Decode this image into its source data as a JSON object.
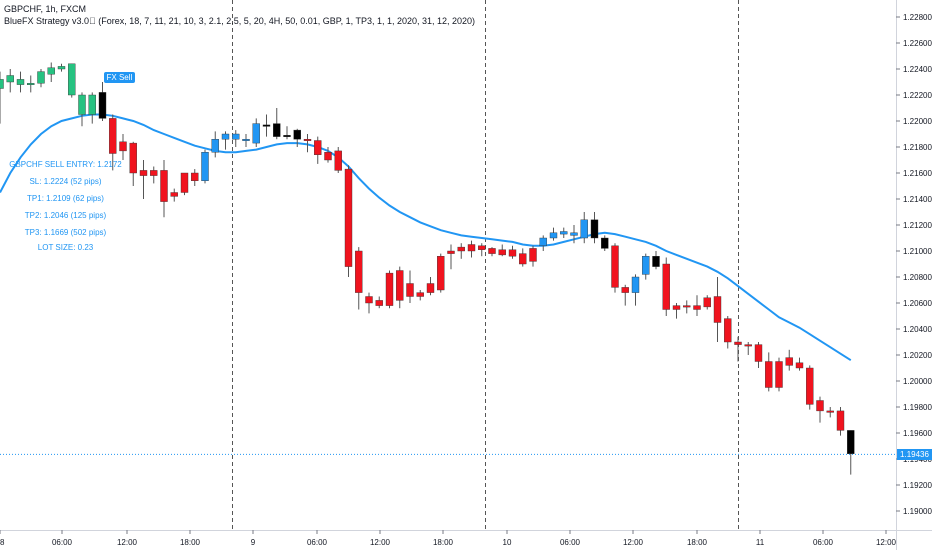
{
  "header": {
    "symbol_line": "GBPCHF, 1h, FXCM",
    "indicator_line": "BlueFX Strategy v3.0⃝ (Forex, 18, 7, 11, 21, 10, 3, 2.1, 2.5, 5, 20, 4H, 50, 0.01, GBP, 1, TP3, 1, 1, 2020, 31, 12, 2020)"
  },
  "signal": {
    "label": "FX Sell",
    "entry": "GBPCHF SELL ENTRY: 1.2172",
    "sl": "SL: 1.2224 (52 pips)",
    "tp1": "TP1: 1.2109 (62 pips)",
    "tp2": "TP2: 1.2046 (125 pips)",
    "tp3": "TP3: 1.1669 (502 pips)",
    "lot": "LOT SIZE: 0.23"
  },
  "current_price_label": "1.19436",
  "colors": {
    "bull_green": "#26c281",
    "bear_red": "#f0131e",
    "neutral_blue": "#2196f3",
    "neutral_black": "#000000",
    "ma_line": "#2196f3",
    "session_line": "#555555"
  },
  "chart_data": {
    "type": "candlestick",
    "symbol": "GBPCHF",
    "timeframe": "1h",
    "ylim": [
      1.189,
      1.229
    ],
    "y_ticks": [
      "1.22800",
      "1.22600",
      "1.22400",
      "1.22200",
      "1.22000",
      "1.21800",
      "1.21600",
      "1.21400",
      "1.21200",
      "1.21000",
      "1.20800",
      "1.20600",
      "1.20400",
      "1.20200",
      "1.20000",
      "1.19800",
      "1.19600",
      "1.19400",
      "1.19200",
      "1.19000"
    ],
    "x_ticks": [
      "8",
      "06:00",
      "12:00",
      "18:00",
      "9",
      "06:00",
      "12:00",
      "18:00",
      "10",
      "06:00",
      "12:00",
      "18:00",
      "11",
      "06:00",
      "12:00"
    ],
    "current_price": 1.19436,
    "candles": [
      {
        "o": 1.2225,
        "h": 1.2238,
        "l": 1.2198,
        "c": 1.2232,
        "col": "g"
      },
      {
        "o": 1.223,
        "h": 1.224,
        "l": 1.2222,
        "c": 1.2235,
        "col": "g"
      },
      {
        "o": 1.2228,
        "h": 1.2238,
        "l": 1.2222,
        "c": 1.2232,
        "col": "g"
      },
      {
        "o": 1.2228,
        "h": 1.2235,
        "l": 1.2222,
        "c": 1.2229,
        "col": "g"
      },
      {
        "o": 1.2229,
        "h": 1.224,
        "l": 1.2226,
        "c": 1.2238,
        "col": "g"
      },
      {
        "o": 1.2236,
        "h": 1.2245,
        "l": 1.223,
        "c": 1.2241,
        "col": "g"
      },
      {
        "o": 1.2242,
        "h": 1.2244,
        "l": 1.2238,
        "c": 1.224,
        "col": "g"
      },
      {
        "o": 1.222,
        "h": 1.2244,
        "l": 1.2218,
        "c": 1.2244,
        "col": "g"
      },
      {
        "o": 1.2205,
        "h": 1.2222,
        "l": 1.2196,
        "c": 1.222,
        "col": "g"
      },
      {
        "o": 1.2205,
        "h": 1.2222,
        "l": 1.2198,
        "c": 1.222,
        "col": "g"
      },
      {
        "o": 1.2222,
        "h": 1.223,
        "l": 1.22,
        "c": 1.2202,
        "col": "k"
      },
      {
        "o": 1.2202,
        "h": 1.2205,
        "l": 1.2162,
        "c": 1.2175,
        "col": "r"
      },
      {
        "o": 1.2184,
        "h": 1.219,
        "l": 1.217,
        "c": 1.2177,
        "col": "r"
      },
      {
        "o": 1.2183,
        "h": 1.2184,
        "l": 1.215,
        "c": 1.216,
        "col": "r"
      },
      {
        "o": 1.2162,
        "h": 1.217,
        "l": 1.214,
        "c": 1.2158,
        "col": "r"
      },
      {
        "o": 1.2162,
        "h": 1.2165,
        "l": 1.2152,
        "c": 1.2158,
        "col": "r"
      },
      {
        "o": 1.2162,
        "h": 1.217,
        "l": 1.2126,
        "c": 1.2138,
        "col": "r"
      },
      {
        "o": 1.2145,
        "h": 1.2148,
        "l": 1.2138,
        "c": 1.2142,
        "col": "r"
      },
      {
        "o": 1.2145,
        "h": 1.216,
        "l": 1.2143,
        "c": 1.216,
        "col": "r"
      },
      {
        "o": 1.2154,
        "h": 1.2163,
        "l": 1.215,
        "c": 1.216,
        "col": "r"
      },
      {
        "o": 1.2154,
        "h": 1.2178,
        "l": 1.2152,
        "c": 1.2176,
        "col": "b"
      },
      {
        "o": 1.2176,
        "h": 1.2192,
        "l": 1.2172,
        "c": 1.2186,
        "col": "b"
      },
      {
        "o": 1.2186,
        "h": 1.2192,
        "l": 1.2178,
        "c": 1.219,
        "col": "b"
      },
      {
        "o": 1.2186,
        "h": 1.2193,
        "l": 1.218,
        "c": 1.219,
        "col": "b"
      },
      {
        "o": 1.2186,
        "h": 1.219,
        "l": 1.218,
        "c": 1.2185,
        "col": "b"
      },
      {
        "o": 1.2183,
        "h": 1.2202,
        "l": 1.218,
        "c": 1.2198,
        "col": "b"
      },
      {
        "o": 1.2197,
        "h": 1.2205,
        "l": 1.2188,
        "c": 1.2197,
        "col": "k"
      },
      {
        "o": 1.2198,
        "h": 1.221,
        "l": 1.2186,
        "c": 1.2188,
        "col": "k"
      },
      {
        "o": 1.2189,
        "h": 1.2196,
        "l": 1.2186,
        "c": 1.2188,
        "col": "k"
      },
      {
        "o": 1.2193,
        "h": 1.2194,
        "l": 1.218,
        "c": 1.2186,
        "col": "k"
      },
      {
        "o": 1.2186,
        "h": 1.219,
        "l": 1.2176,
        "c": 1.2185,
        "col": "r"
      },
      {
        "o": 1.2185,
        "h": 1.2188,
        "l": 1.2167,
        "c": 1.2174,
        "col": "r"
      },
      {
        "o": 1.2176,
        "h": 1.218,
        "l": 1.2168,
        "c": 1.217,
        "col": "r"
      },
      {
        "o": 1.2177,
        "h": 1.218,
        "l": 1.216,
        "c": 1.2162,
        "col": "r"
      },
      {
        "o": 1.2163,
        "h": 1.2166,
        "l": 1.208,
        "c": 1.2088,
        "col": "r"
      },
      {
        "o": 1.21,
        "h": 1.2103,
        "l": 1.2055,
        "c": 1.2068,
        "col": "r"
      },
      {
        "o": 1.2065,
        "h": 1.2068,
        "l": 1.2052,
        "c": 1.206,
        "col": "r"
      },
      {
        "o": 1.2062,
        "h": 1.2065,
        "l": 1.2056,
        "c": 1.2058,
        "col": "r"
      },
      {
        "o": 1.2058,
        "h": 1.2085,
        "l": 1.2056,
        "c": 1.2083,
        "col": "r"
      },
      {
        "o": 1.2085,
        "h": 1.2088,
        "l": 1.2056,
        "c": 1.2062,
        "col": "r"
      },
      {
        "o": 1.2065,
        "h": 1.2085,
        "l": 1.206,
        "c": 1.2075,
        "col": "r"
      },
      {
        "o": 1.2065,
        "h": 1.207,
        "l": 1.2062,
        "c": 1.2068,
        "col": "r"
      },
      {
        "o": 1.2068,
        "h": 1.208,
        "l": 1.2066,
        "c": 1.2075,
        "col": "r"
      },
      {
        "o": 1.207,
        "h": 1.2098,
        "l": 1.2068,
        "c": 1.2096,
        "col": "r"
      },
      {
        "o": 1.2098,
        "h": 1.2105,
        "l": 1.2086,
        "c": 1.21,
        "col": "r"
      },
      {
        "o": 1.21,
        "h": 1.2106,
        "l": 1.2094,
        "c": 1.2103,
        "col": "r"
      },
      {
        "o": 1.21,
        "h": 1.2108,
        "l": 1.2095,
        "c": 1.2105,
        "col": "r"
      },
      {
        "o": 1.2101,
        "h": 1.2106,
        "l": 1.2096,
        "c": 1.2104,
        "col": "r"
      },
      {
        "o": 1.2102,
        "h": 1.2103,
        "l": 1.2096,
        "c": 1.2098,
        "col": "r"
      },
      {
        "o": 1.2101,
        "h": 1.2105,
        "l": 1.2096,
        "c": 1.2097,
        "col": "r"
      },
      {
        "o": 1.2101,
        "h": 1.2104,
        "l": 1.2094,
        "c": 1.2096,
        "col": "r"
      },
      {
        "o": 1.2098,
        "h": 1.2102,
        "l": 1.2088,
        "c": 1.209,
        "col": "r"
      },
      {
        "o": 1.2092,
        "h": 1.2104,
        "l": 1.2088,
        "c": 1.2102,
        "col": "r"
      },
      {
        "o": 1.2104,
        "h": 1.2112,
        "l": 1.21,
        "c": 1.211,
        "col": "b"
      },
      {
        "o": 1.211,
        "h": 1.2118,
        "l": 1.2108,
        "c": 1.2114,
        "col": "b"
      },
      {
        "o": 1.2113,
        "h": 1.2118,
        "l": 1.211,
        "c": 1.2115,
        "col": "b"
      },
      {
        "o": 1.2112,
        "h": 1.212,
        "l": 1.2106,
        "c": 1.2114,
        "col": "b"
      },
      {
        "o": 1.211,
        "h": 1.213,
        "l": 1.2106,
        "c": 1.2124,
        "col": "b"
      },
      {
        "o": 1.2124,
        "h": 1.213,
        "l": 1.2106,
        "c": 1.211,
        "col": "k"
      },
      {
        "o": 1.211,
        "h": 1.2112,
        "l": 1.21,
        "c": 1.2102,
        "col": "k"
      },
      {
        "o": 1.2104,
        "h": 1.2106,
        "l": 1.2068,
        "c": 1.2072,
        "col": "r"
      },
      {
        "o": 1.2072,
        "h": 1.2074,
        "l": 1.2058,
        "c": 1.2068,
        "col": "r"
      },
      {
        "o": 1.2068,
        "h": 1.2082,
        "l": 1.2058,
        "c": 1.208,
        "col": "b"
      },
      {
        "o": 1.2082,
        "h": 1.2098,
        "l": 1.2078,
        "c": 1.2096,
        "col": "b"
      },
      {
        "o": 1.2096,
        "h": 1.21,
        "l": 1.2086,
        "c": 1.2088,
        "col": "k"
      },
      {
        "o": 1.209,
        "h": 1.2095,
        "l": 1.205,
        "c": 1.2055,
        "col": "r"
      },
      {
        "o": 1.2058,
        "h": 1.206,
        "l": 1.2048,
        "c": 1.2055,
        "col": "r"
      },
      {
        "o": 1.2057,
        "h": 1.2062,
        "l": 1.2052,
        "c": 1.2058,
        "col": "r"
      },
      {
        "o": 1.2058,
        "h": 1.2066,
        "l": 1.205,
        "c": 1.2055,
        "col": "r"
      },
      {
        "o": 1.2064,
        "h": 1.2066,
        "l": 1.2055,
        "c": 1.2057,
        "col": "r"
      },
      {
        "o": 1.2065,
        "h": 1.208,
        "l": 1.203,
        "c": 1.2045,
        "col": "r"
      },
      {
        "o": 1.2048,
        "h": 1.205,
        "l": 1.2025,
        "c": 1.203,
        "col": "r"
      },
      {
        "o": 1.203,
        "h": 1.2034,
        "l": 1.2015,
        "c": 1.2028,
        "col": "r"
      },
      {
        "o": 1.2028,
        "h": 1.203,
        "l": 1.202,
        "c": 1.2027,
        "col": "r"
      },
      {
        "o": 1.2028,
        "h": 1.203,
        "l": 1.201,
        "c": 1.2015,
        "col": "r"
      },
      {
        "o": 1.2015,
        "h": 1.2022,
        "l": 1.1992,
        "c": 1.1995,
        "col": "r"
      },
      {
        "o": 1.2015,
        "h": 1.2018,
        "l": 1.1992,
        "c": 1.1995,
        "col": "r"
      },
      {
        "o": 1.2018,
        "h": 1.2024,
        "l": 1.2008,
        "c": 1.2012,
        "col": "r"
      },
      {
        "o": 1.2014,
        "h": 1.2018,
        "l": 1.2008,
        "c": 1.201,
        "col": "r"
      },
      {
        "o": 1.201,
        "h": 1.2012,
        "l": 1.1978,
        "c": 1.1982,
        "col": "r"
      },
      {
        "o": 1.1985,
        "h": 1.1988,
        "l": 1.1968,
        "c": 1.1977,
        "col": "r"
      },
      {
        "o": 1.1977,
        "h": 1.198,
        "l": 1.1972,
        "c": 1.1976,
        "col": "r"
      },
      {
        "o": 1.1977,
        "h": 1.198,
        "l": 1.1958,
        "c": 1.1962,
        "col": "r"
      },
      {
        "o": 1.1962,
        "h": 1.1962,
        "l": 1.1928,
        "c": 1.1944,
        "col": "k"
      }
    ],
    "ma": [
      1.2145,
      1.216,
      1.2172,
      1.2182,
      1.219,
      1.2196,
      1.22,
      1.2202,
      1.2204,
      1.2205,
      1.2205,
      1.2204,
      1.2202,
      1.22,
      1.2197,
      1.2193,
      1.219,
      1.2187,
      1.2184,
      1.2181,
      1.2179,
      1.2177,
      1.2176,
      1.2176,
      1.2177,
      1.2178,
      1.218,
      1.2182,
      1.2183,
      1.2183,
      1.2182,
      1.218,
      1.2177,
      1.2172,
      1.2165,
      1.2156,
      1.2148,
      1.2141,
      1.2135,
      1.213,
      1.2126,
      1.2122,
      1.2119,
      1.2116,
      1.2114,
      1.2112,
      1.2111,
      1.211,
      1.2109,
      1.2108,
      1.2107,
      1.2105,
      1.2104,
      1.2104,
      1.2105,
      1.2107,
      1.2109,
      1.2111,
      1.2113,
      1.2114,
      1.2113,
      1.2111,
      1.2109,
      1.2107,
      1.2104,
      1.21,
      1.2097,
      1.2094,
      1.2091,
      1.2088,
      1.2084,
      1.2079,
      1.2073,
      1.2067,
      1.2061,
      1.2055,
      1.2049,
      1.2045,
      1.2041,
      1.2036,
      1.2031,
      1.2026,
      1.2021,
      1.2016
    ]
  }
}
